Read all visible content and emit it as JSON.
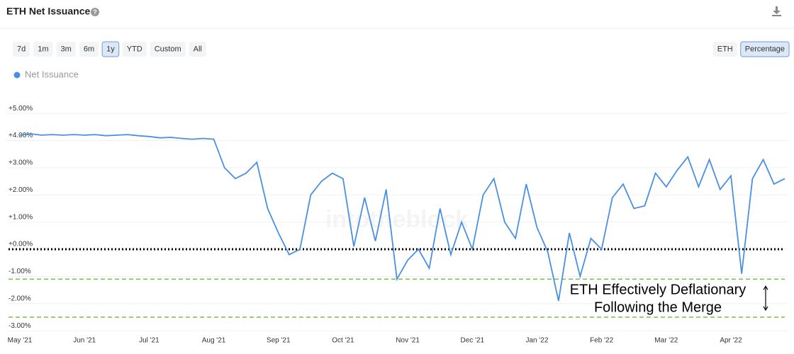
{
  "header": {
    "title": "ETH Net Issuance",
    "help": "?"
  },
  "ui": {
    "ranges": [
      "7d",
      "1m",
      "3m",
      "6m",
      "1y",
      "YTD",
      "Custom",
      "All"
    ],
    "selected_range": 4,
    "units": [
      "ETH",
      "Percentage"
    ],
    "selected_unit": 1,
    "watermark": "intotheblock"
  },
  "chart_data": {
    "type": "line",
    "categories": [
      "May '21",
      null,
      null,
      null,
      null,
      null,
      "Jun '21",
      null,
      null,
      null,
      null,
      null,
      "Jul '21",
      null,
      null,
      null,
      null,
      null,
      "Aug '21",
      null,
      null,
      null,
      null,
      null,
      "Sep '21",
      null,
      null,
      null,
      null,
      null,
      "Oct '21",
      null,
      null,
      null,
      null,
      null,
      "Nov '21",
      null,
      null,
      null,
      null,
      null,
      "Dec '21",
      null,
      null,
      null,
      null,
      null,
      "Jan '22",
      null,
      null,
      null,
      null,
      null,
      "Feb '22",
      null,
      null,
      null,
      null,
      null,
      "Mar '22",
      null,
      null,
      null,
      null,
      null,
      "Apr '22",
      null,
      null,
      null,
      null,
      null
    ],
    "series": [
      {
        "name": "Net Issuance",
        "color": "#4a90e2",
        "values": [
          4.2,
          4.25,
          4.2,
          4.22,
          4.2,
          4.22,
          4.2,
          4.22,
          4.18,
          4.2,
          4.22,
          4.18,
          4.15,
          4.1,
          4.12,
          4.08,
          4.05,
          4.08,
          4.05,
          3.0,
          2.6,
          2.8,
          3.2,
          1.5,
          0.6,
          -0.2,
          0.0,
          2.0,
          2.5,
          2.8,
          2.6,
          0.1,
          1.9,
          0.3,
          2.2,
          -1.1,
          -0.4,
          0.0,
          -0.7,
          1.5,
          -0.2,
          1.0,
          0.0,
          2.0,
          2.6,
          1.0,
          0.4,
          2.4,
          0.8,
          -0.1,
          -1.9,
          0.6,
          -1.0,
          0.4,
          0.0,
          1.9,
          2.4,
          1.5,
          1.6,
          2.8,
          2.3,
          2.9,
          3.4,
          2.3,
          3.3,
          2.2,
          2.7,
          -0.9,
          2.6,
          3.3,
          2.4,
          2.6
        ]
      }
    ],
    "ylim": [
      -3.1,
      5.5
    ],
    "yticks": [
      {
        "value": 5,
        "label": "+5.00%"
      },
      {
        "value": 4,
        "label": "+4.00%"
      },
      {
        "value": 3,
        "label": "+3.00%"
      },
      {
        "value": 2,
        "label": "+2.00%"
      },
      {
        "value": 1,
        "label": "+1.00%"
      },
      {
        "value": 0,
        "label": "+0.00%"
      },
      {
        "value": -1,
        "label": "-1.00%"
      },
      {
        "value": -2,
        "label": "-2.00%"
      },
      {
        "value": -3,
        "label": "-3.00%"
      }
    ],
    "grid": true,
    "legend": "top-left",
    "reference_lines": [
      {
        "value": 0,
        "color": "#000000",
        "style": "dotted"
      },
      {
        "value": -1.1,
        "color": "#7ac143",
        "style": "dashed"
      },
      {
        "value": -2.5,
        "color": "#7ac143",
        "style": "dashed"
      }
    ],
    "annotation": [
      "ETH Effectively Deflationary",
      "Following the Merge"
    ]
  }
}
